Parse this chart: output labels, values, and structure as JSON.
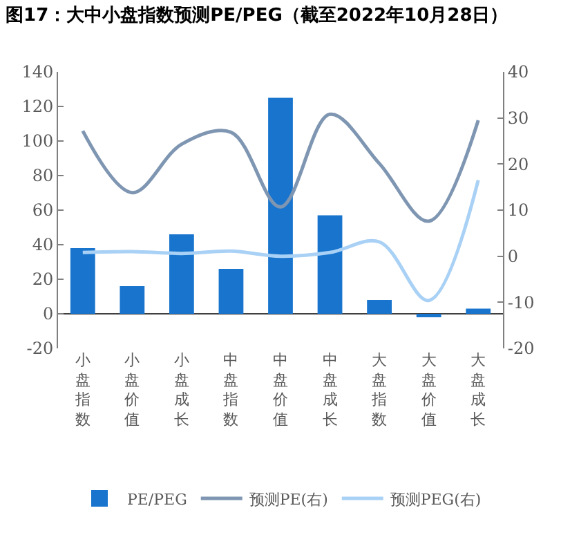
{
  "chart_data": {
    "type": "bar",
    "title": "图17：大中小盘指数预测PE/PEG（截至2022年10月28日）",
    "categories": [
      "小盘指数",
      "小盘价值",
      "小盘成长",
      "中盘指数",
      "中盘价值",
      "中盘成长",
      "大盘指数",
      "大盘价值",
      "大盘成长"
    ],
    "series": [
      {
        "name": "PE/PEG",
        "color": "#1874cd",
        "values": [
          38,
          16,
          46,
          26,
          125,
          57,
          8,
          -2,
          3
        ]
      },
      {
        "name": "预测PE(右)",
        "type": "line",
        "axis": "y2",
        "color": "#7f96b2",
        "values": [
          27.2,
          13.8,
          24.3,
          26.9,
          10.7,
          30.8,
          20.1,
          7.6,
          29.5
        ]
      },
      {
        "name": "预测PEG(右)",
        "type": "line",
        "axis": "y2",
        "color": "#a9d1f5",
        "values": [
          0.8,
          1.0,
          0.6,
          1.1,
          0,
          0.8,
          3.1,
          -9.6,
          16.5
        ]
      }
    ],
    "ylim": [
      -20,
      140
    ],
    "yticks": [
      -20,
      0,
      20,
      40,
      60,
      80,
      100,
      120,
      140
    ],
    "y2lim": [
      -20,
      40
    ],
    "y2ticks": [
      -20,
      -10,
      0,
      10,
      20,
      30,
      40
    ],
    "grid": false,
    "legend": "bottom",
    "marker": "none",
    "line_style": "solid"
  }
}
